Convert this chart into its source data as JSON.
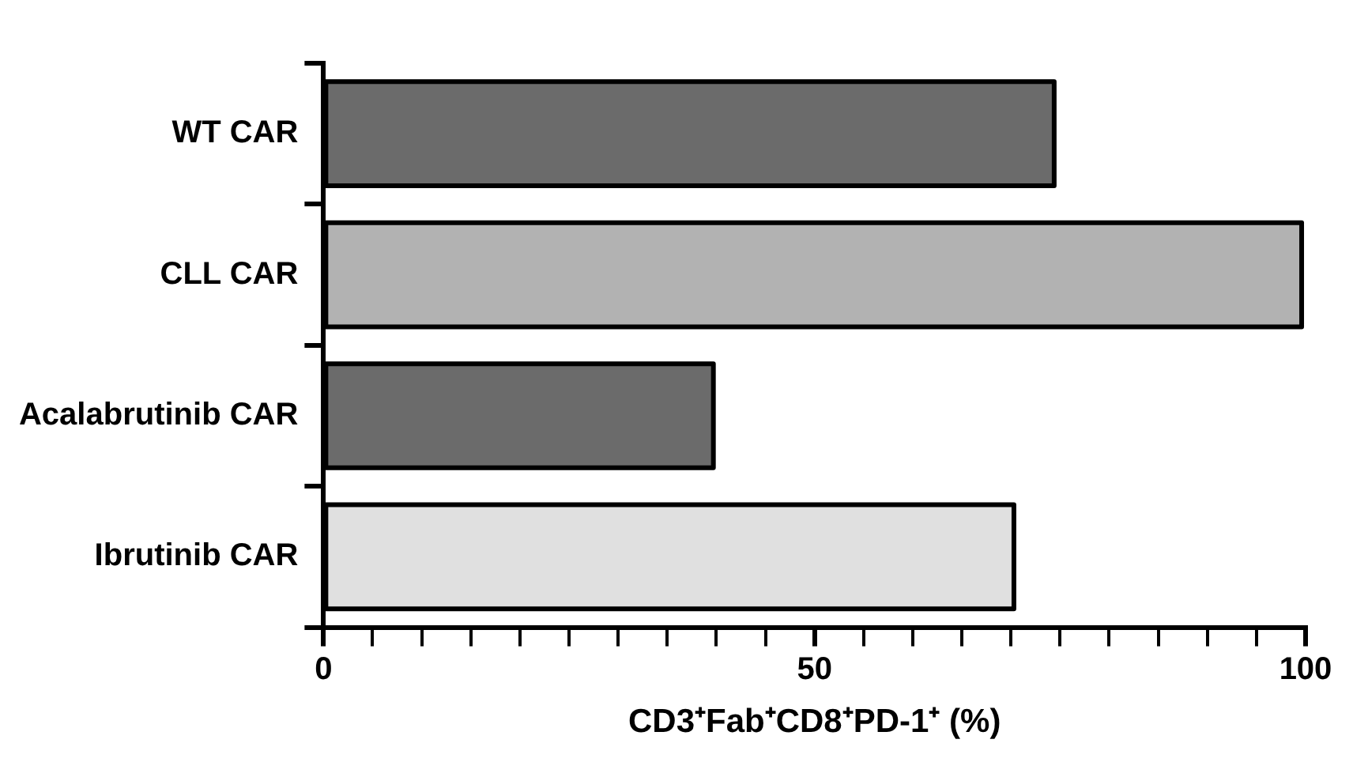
{
  "chart_data": {
    "type": "bar",
    "orientation": "horizontal",
    "categories": [
      "WT CAR",
      "CLL CAR",
      "Acalabrutinib CAR",
      "Ibrutinib CAR"
    ],
    "values": [
      74.4,
      99.6,
      39.7,
      70.3
    ],
    "colors": [
      "#6b6b6b",
      "#b2b2b2",
      "#6b6b6b",
      "#e0e0e0"
    ],
    "xlabel": "CD3⁺Fab⁺CD8⁺PD-1⁺ (%)",
    "xlim": [
      0,
      100
    ],
    "xticks": [
      0,
      {
        "value": 5,
        "label": null
      },
      {
        "value": 10,
        "label": null
      },
      {
        "value": 15,
        "label": null
      },
      {
        "value": 20,
        "label": null
      },
      {
        "value": 25,
        "label": null
      },
      {
        "value": 30,
        "label": null
      },
      {
        "value": 35,
        "label": null
      },
      {
        "value": 40,
        "label": null
      },
      {
        "value": 45,
        "label": null
      },
      50,
      {
        "value": 55,
        "label": null
      },
      {
        "value": 60,
        "label": null
      },
      {
        "value": 65,
        "label": null
      },
      {
        "value": 70,
        "label": null
      },
      {
        "value": 75,
        "label": null
      },
      {
        "value": 80,
        "label": null
      },
      {
        "value": 85,
        "label": null
      },
      {
        "value": 90,
        "label": null
      },
      {
        "value": 95,
        "label": null
      },
      100
    ],
    "grid": false,
    "legend": false
  }
}
